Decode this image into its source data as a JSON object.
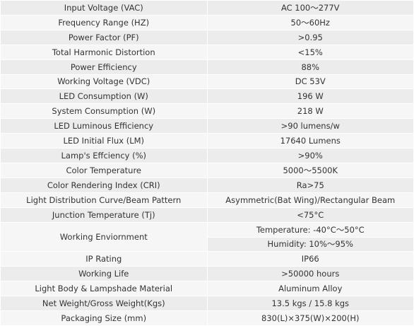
{
  "table": {
    "rows": [
      {
        "label": "Input Voltage (VAC)",
        "values": [
          "AC 100～277V"
        ]
      },
      {
        "label": "Frequency Range (HZ)",
        "values": [
          "50～60Hz"
        ]
      },
      {
        "label": "Power Factor (PF)",
        "values": [
          ">0.95"
        ]
      },
      {
        "label": "Total Harmonic Distortion",
        "values": [
          "<15%"
        ]
      },
      {
        "label": "Power Efficiency",
        "values": [
          "88%"
        ]
      },
      {
        "label": "Working Voltage (VDC)",
        "values": [
          "DC 53V"
        ]
      },
      {
        "label": "LED Consumption (W)",
        "values": [
          "196 W"
        ]
      },
      {
        "label": "System Consumption (W)",
        "values": [
          "218 W"
        ]
      },
      {
        "label": "LED Luminous Efficiency",
        "values": [
          ">90 lumens/w"
        ]
      },
      {
        "label": "LED Initial Flux (LM)",
        "values": [
          "17640 Lumens"
        ]
      },
      {
        "label": "Lamp's Effciency (%)",
        "values": [
          ">90%"
        ]
      },
      {
        "label": "Color Temperature",
        "values": [
          "5000～5500K"
        ]
      },
      {
        "label": "Color Rendering Index (CRI)",
        "values": [
          "Ra>75"
        ]
      },
      {
        "label": "Light Distribution Curve/Beam Pattern",
        "values": [
          "Asymmetric(Bat Wing)/Rectangular Beam"
        ]
      },
      {
        "label": "Junction Temperature (Tj)",
        "values": [
          "<75°C"
        ]
      },
      {
        "label": "Working Enviornment",
        "values": [
          "Temperature: -40°C～50°C",
          "Humidity: 10%～95%"
        ]
      },
      {
        "label": "IP Rating",
        "values": [
          "IP66"
        ]
      },
      {
        "label": "Working Life",
        "values": [
          ">50000 hours"
        ]
      },
      {
        "label": "Light Body & Lampshade Material",
        "values": [
          "Aluminum Alloy"
        ]
      },
      {
        "label": "Net Weight/Gross Weight(Kgs)",
        "values": [
          "13.5 kgs / 15.8 kgs"
        ]
      },
      {
        "label": "Packaging Size (mm)",
        "values": [
          "830(L)×375(W)×200(H)"
        ]
      }
    ]
  }
}
